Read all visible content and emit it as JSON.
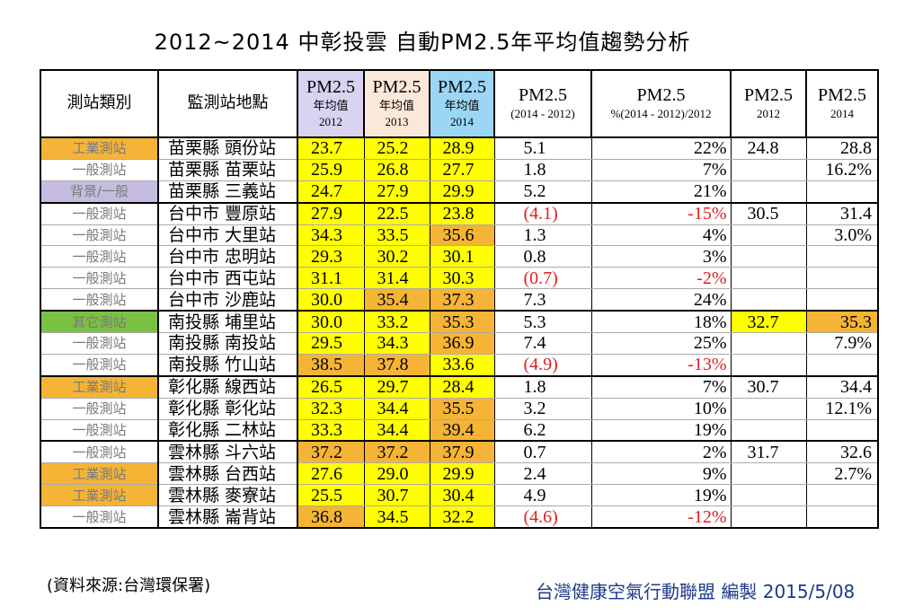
{
  "title": "2012~2014 中彰投雲 自動PM2.5年平均值趨勢分析",
  "headers": {
    "type": "測站類別",
    "site": "監測站地點",
    "c2012": [
      "PM2.5",
      "年均值",
      "2012"
    ],
    "c2013": [
      "PM2.5",
      "年均值",
      "2013"
    ],
    "c2014": [
      "PM2.5",
      "年均值",
      "2014"
    ],
    "diff": [
      "PM2.5",
      "(2014 - 2012)"
    ],
    "pct": [
      "PM2.5",
      "%(2014 - 2012)/2012"
    ],
    "a2012": [
      "PM2.5",
      "2012"
    ],
    "a2014": [
      "PM2.5",
      "2014"
    ]
  },
  "rows": [
    {
      "type": "工業測站",
      "site": "苗栗縣 頭份站",
      "v2012": "23.7",
      "v2013": "25.2",
      "v2014": "28.9",
      "diff": "5.1",
      "pct": "22%",
      "a2012": "24.8",
      "a2014": "28.8"
    },
    {
      "type": "一般測站",
      "site": "苗栗縣 苗栗站",
      "v2012": "25.9",
      "v2013": "26.8",
      "v2014": "27.7",
      "diff": "1.8",
      "pct": "7%",
      "a2012": "",
      "a2014": "16.2%"
    },
    {
      "type": "背景/一般",
      "site": "苗栗縣 三義站",
      "v2012": "24.7",
      "v2013": "27.9",
      "v2014": "29.9",
      "diff": "5.2",
      "pct": "21%",
      "a2012": "",
      "a2014": ""
    },
    {
      "type": "一般測站",
      "site": "台中市 豐原站",
      "v2012": "27.9",
      "v2013": "22.5",
      "v2014": "23.8",
      "diff": "(4.1)",
      "pct": "-15%",
      "a2012": "30.5",
      "a2014": "31.4"
    },
    {
      "type": "一般測站",
      "site": "台中市 大里站",
      "v2012": "34.3",
      "v2013": "33.5",
      "v2014": "35.6",
      "diff": "1.3",
      "pct": "4%",
      "a2012": "",
      "a2014": "3.0%"
    },
    {
      "type": "一般測站",
      "site": "台中市 忠明站",
      "v2012": "29.3",
      "v2013": "30.2",
      "v2014": "30.1",
      "diff": "0.8",
      "pct": "3%",
      "a2012": "",
      "a2014": ""
    },
    {
      "type": "一般測站",
      "site": "台中市 西屯站",
      "v2012": "31.1",
      "v2013": "31.4",
      "v2014": "30.3",
      "diff": "(0.7)",
      "pct": "-2%",
      "a2012": "",
      "a2014": ""
    },
    {
      "type": "一般測站",
      "site": "台中市 沙鹿站",
      "v2012": "30.0",
      "v2013": "35.4",
      "v2014": "37.3",
      "diff": "7.3",
      "pct": "24%",
      "a2012": "",
      "a2014": ""
    },
    {
      "type": "其它測站",
      "site": "南投縣 埔里站",
      "v2012": "30.0",
      "v2013": "33.2",
      "v2014": "35.3",
      "diff": "5.3",
      "pct": "18%",
      "a2012": "32.7",
      "a2014": "35.3"
    },
    {
      "type": "一般測站",
      "site": "南投縣 南投站",
      "v2012": "29.5",
      "v2013": "34.3",
      "v2014": "36.9",
      "diff": "7.4",
      "pct": "25%",
      "a2012": "",
      "a2014": "7.9%"
    },
    {
      "type": "一般測站",
      "site": "南投縣 竹山站",
      "v2012": "38.5",
      "v2013": "37.8",
      "v2014": "33.6",
      "diff": "(4.9)",
      "pct": "-13%",
      "a2012": "",
      "a2014": ""
    },
    {
      "type": "工業測站",
      "site": "彰化縣 線西站",
      "v2012": "26.5",
      "v2013": "29.7",
      "v2014": "28.4",
      "diff": "1.8",
      "pct": "7%",
      "a2012": "30.7",
      "a2014": "34.4"
    },
    {
      "type": "一般測站",
      "site": "彰化縣 彰化站",
      "v2012": "32.3",
      "v2013": "34.4",
      "v2014": "35.5",
      "diff": "3.2",
      "pct": "10%",
      "a2012": "",
      "a2014": "12.1%"
    },
    {
      "type": "一般測站",
      "site": "彰化縣 二林站",
      "v2012": "33.3",
      "v2013": "34.4",
      "v2014": "39.4",
      "diff": "6.2",
      "pct": "19%",
      "a2012": "",
      "a2014": ""
    },
    {
      "type": "一般測站",
      "site": "雲林縣 斗六站",
      "v2012": "37.2",
      "v2013": "37.2",
      "v2014": "37.9",
      "diff": "0.7",
      "pct": "2%",
      "a2012": "31.7",
      "a2014": "32.6"
    },
    {
      "type": "工業測站",
      "site": "雲林縣 台西站",
      "v2012": "27.6",
      "v2013": "29.0",
      "v2014": "29.9",
      "diff": "2.4",
      "pct": "9%",
      "a2012": "",
      "a2014": "2.7%"
    },
    {
      "type": "工業測站",
      "site": "雲林縣 麥寮站",
      "v2012": "25.5",
      "v2013": "30.7",
      "v2014": "30.4",
      "diff": "4.9",
      "pct": "19%",
      "a2012": "",
      "a2014": ""
    },
    {
      "type": "一般測站",
      "site": "雲林縣 崙背站",
      "v2012": "36.8",
      "v2013": "34.5",
      "v2014": "32.2",
      "diff": "(4.6)",
      "pct": "-12%",
      "a2012": "",
      "a2014": ""
    }
  ],
  "footer": {
    "source": "(資料來源:台灣環保署)",
    "credit": "台灣健康空氣行動聯盟 編製 2015/5/08"
  }
}
